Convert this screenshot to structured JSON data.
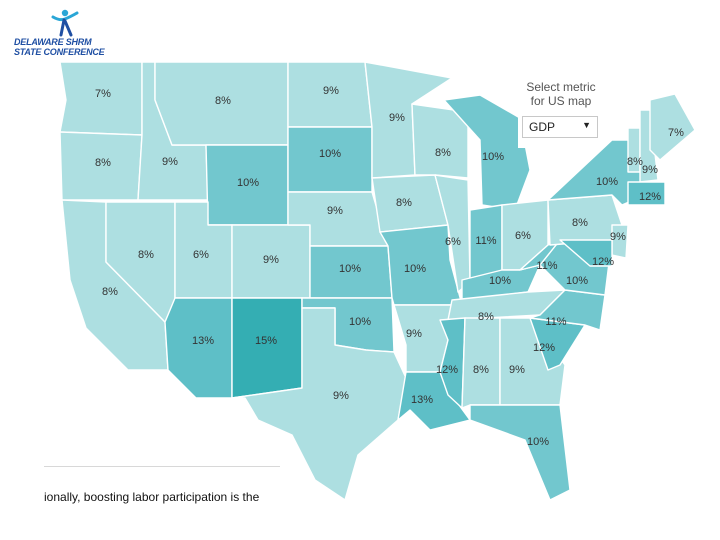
{
  "logo": {
    "line1": "DELAWARE SHRM",
    "line2": "STATE CONFERENCE",
    "icon": "runner-figure-icon"
  },
  "metric_selector": {
    "title_line1": "Select metric",
    "title_line2": "for US map",
    "selected": "GDP",
    "dropdown_icon": "caret-down-icon"
  },
  "caption": {
    "text": "ionally, boosting labor participation is the"
  },
  "colors": {
    "level_6_9": "#addfe1",
    "level_10_11": "#72c7ce",
    "level_12_13": "#5ebfc7",
    "level_15": "#34aeb3"
  },
  "states": [
    {
      "id": "WA",
      "label": "7%"
    },
    {
      "id": "OR",
      "label": "8%"
    },
    {
      "id": "CA",
      "label": "8%"
    },
    {
      "id": "ID",
      "label": "9%"
    },
    {
      "id": "NV",
      "label": "8%"
    },
    {
      "id": "MT",
      "label": "8%"
    },
    {
      "id": "WY",
      "label": "10%"
    },
    {
      "id": "UT",
      "label": "6%"
    },
    {
      "id": "CO",
      "label": "9%"
    },
    {
      "id": "AZ",
      "label": "13%"
    },
    {
      "id": "NM",
      "label": "15%"
    },
    {
      "id": "ND",
      "label": "9%"
    },
    {
      "id": "SD",
      "label": "10%"
    },
    {
      "id": "NE",
      "label": "9%"
    },
    {
      "id": "KS",
      "label": "10%"
    },
    {
      "id": "OK",
      "label": "10%"
    },
    {
      "id": "TX",
      "label": "9%"
    },
    {
      "id": "MN",
      "label": "9%"
    },
    {
      "id": "IA",
      "label": "8%"
    },
    {
      "id": "MO",
      "label": "10%"
    },
    {
      "id": "AR",
      "label": "9%"
    },
    {
      "id": "LA",
      "label": "13%"
    },
    {
      "id": "WI",
      "label": "8%"
    },
    {
      "id": "IL",
      "label": "6%"
    },
    {
      "id": "MI",
      "label": "10%"
    },
    {
      "id": "IN",
      "label": "11%"
    },
    {
      "id": "OH",
      "label": "6%"
    },
    {
      "id": "KY",
      "label": "10%"
    },
    {
      "id": "TN",
      "label": "8%"
    },
    {
      "id": "MS",
      "label": "12%"
    },
    {
      "id": "AL",
      "label": "8%"
    },
    {
      "id": "GA",
      "label": "9%"
    },
    {
      "id": "FL",
      "label": "10%"
    },
    {
      "id": "SC",
      "label": "12%"
    },
    {
      "id": "NC",
      "label": "11%"
    },
    {
      "id": "VA",
      "label": "10%"
    },
    {
      "id": "WV",
      "label": "11%"
    },
    {
      "id": "PA",
      "label": "8%"
    },
    {
      "id": "NY",
      "label": "10%"
    },
    {
      "id": "VT",
      "label": "8%"
    },
    {
      "id": "NH",
      "label": "9%"
    },
    {
      "id": "ME",
      "label": "7%"
    },
    {
      "id": "MA",
      "label": "12%"
    },
    {
      "id": "NJ",
      "label": "9%"
    },
    {
      "id": "MD",
      "label": "12%"
    }
  ]
}
